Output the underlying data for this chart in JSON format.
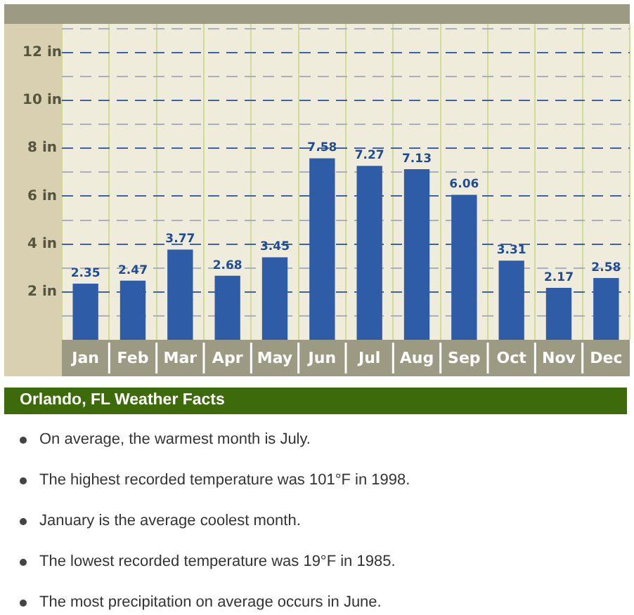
{
  "chart_data": {
    "type": "bar",
    "title": "Orlando, FL Weather Facts",
    "categories": [
      "Jan",
      "Feb",
      "Mar",
      "Apr",
      "May",
      "Jun",
      "Jul",
      "Aug",
      "Sep",
      "Oct",
      "Nov",
      "Dec"
    ],
    "values": [
      2.35,
      2.47,
      3.77,
      2.68,
      3.45,
      7.58,
      7.27,
      7.13,
      6.06,
      3.31,
      2.17,
      2.58
    ],
    "color": "#2f5ca6",
    "ylim": [
      0,
      13.2
    ],
    "yticks": [
      {
        "value": 1,
        "label": null
      },
      {
        "value": 2,
        "label": "2 in"
      },
      {
        "value": 3,
        "label": null
      },
      {
        "value": 4,
        "label": "4 in"
      },
      {
        "value": 5,
        "label": null
      },
      {
        "value": 6,
        "label": "6 in"
      },
      {
        "value": 7,
        "label": null
      },
      {
        "value": 8,
        "label": "8 in"
      },
      {
        "value": 9,
        "label": null
      },
      {
        "value": 10,
        "label": "10 in"
      },
      {
        "value": 11,
        "label": null
      },
      {
        "value": 12,
        "label": "12 in"
      },
      {
        "value": 13,
        "label": null
      }
    ],
    "grid": true,
    "data_labels": true,
    "annotations": [
      "On average, the warmest month is July.",
      "The highest recorded temperature was 101°F in 1998.",
      "January is the average coolest month.",
      "The lowest recorded temperature was 19°F in 1985.",
      "The most precipitation on average occurs in June."
    ]
  }
}
